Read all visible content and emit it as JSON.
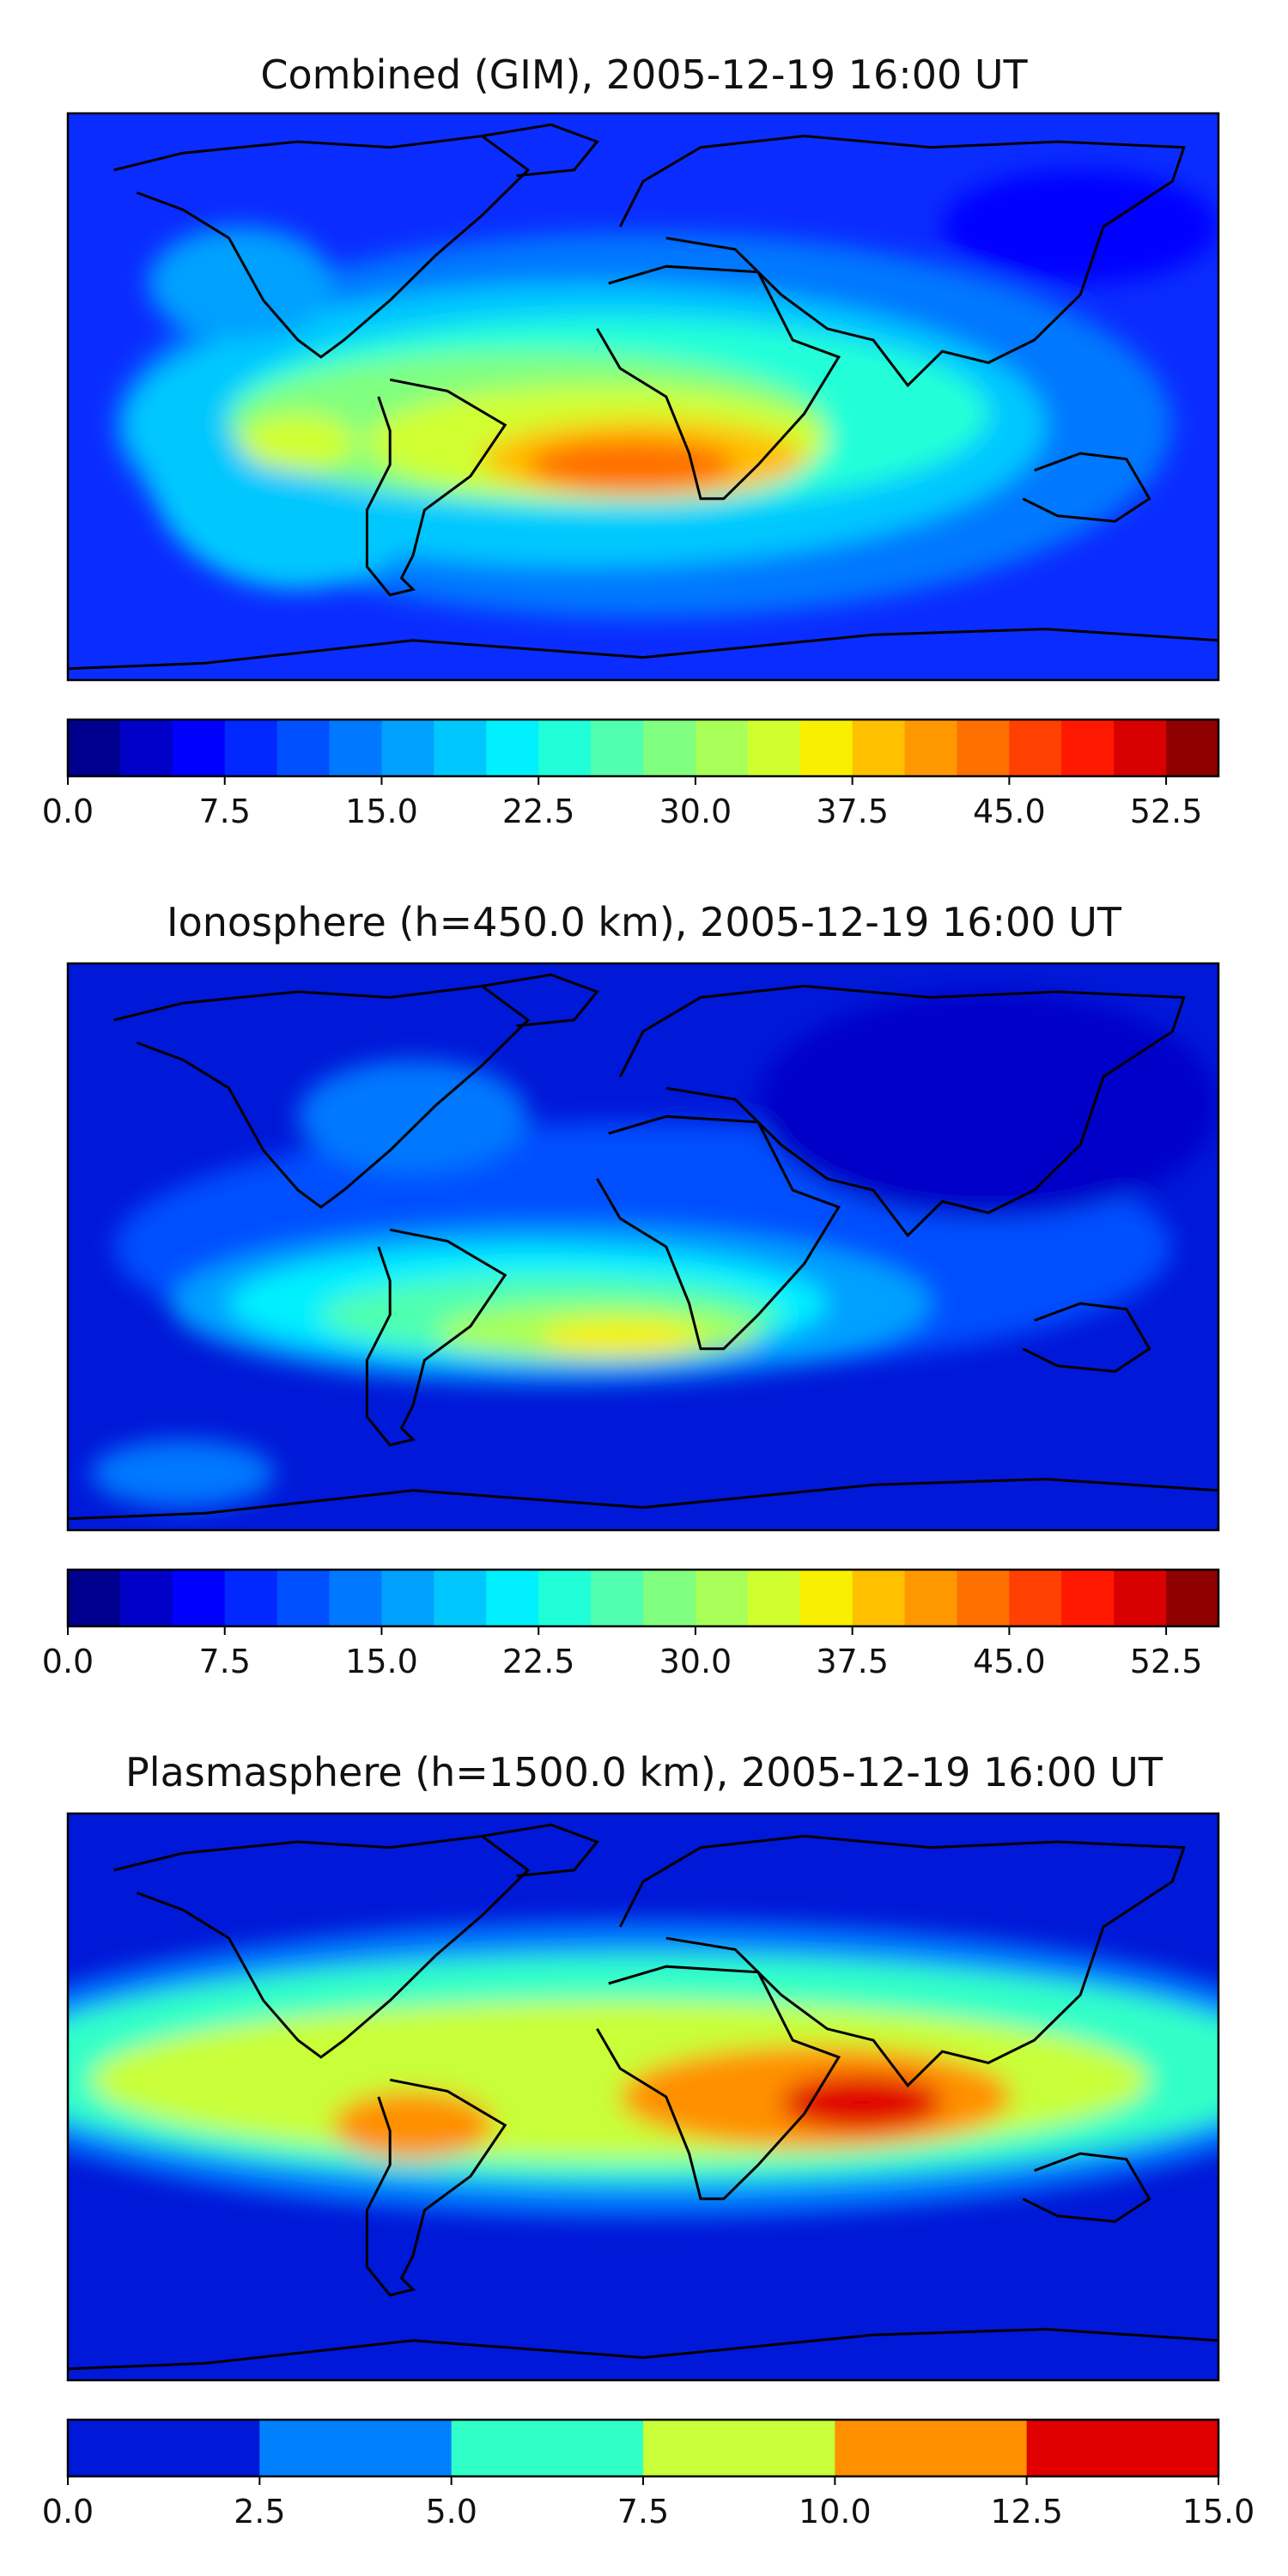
{
  "figure": {
    "panels": [
      {
        "title": "Combined (GIM), 2005-12-19 16:00 UT"
      },
      {
        "title": "Ionosphere  (h=450.0 km), 2005-12-19 16:00 UT"
      },
      {
        "title": "Plasmasphere (h=1500.0 km), 2005-12-19 16:00 UT"
      }
    ]
  },
  "chart_data": [
    {
      "type": "heatmap",
      "title": "Combined (GIM), 2005-12-19 16:00 UT",
      "colorbar": {
        "range": [
          0.0,
          55.0
        ],
        "levels": [
          0.0,
          2.5,
          5.0,
          7.5,
          10.0,
          12.5,
          15.0,
          17.5,
          20.0,
          22.5,
          25.0,
          27.5,
          30.0,
          32.5,
          35.0,
          37.5,
          40.0,
          42.5,
          45.0,
          47.5,
          50.0,
          52.5,
          55.0
        ],
        "tick_labels": [
          "0.0",
          "7.5",
          "15.0",
          "22.5",
          "30.0",
          "37.5",
          "45.0",
          "52.5"
        ],
        "tick_values": [
          0.0,
          7.5,
          15.0,
          22.5,
          30.0,
          37.5,
          45.0,
          52.5
        ],
        "colors": [
          "#00008f",
          "#0000c8",
          "#0000ff",
          "#0028ff",
          "#0050ff",
          "#0078ff",
          "#00a0ff",
          "#00c8ff",
          "#00f0ff",
          "#20ffd8",
          "#50ffb0",
          "#80ff80",
          "#a8ff58",
          "#d0ff30",
          "#f8f000",
          "#ffc000",
          "#ff9800",
          "#ff7000",
          "#ff4000",
          "#ff1800",
          "#d80000",
          "#8f0000"
        ]
      },
      "map": {
        "background": "#0a2cff",
        "max_region_value": 45.0
      }
    },
    {
      "type": "heatmap",
      "title": "Ionosphere  (h=450.0 km), 2005-12-19 16:00 UT",
      "colorbar": {
        "range": [
          0.0,
          55.0
        ],
        "levels": [
          0.0,
          2.5,
          5.0,
          7.5,
          10.0,
          12.5,
          15.0,
          17.5,
          20.0,
          22.5,
          25.0,
          27.5,
          30.0,
          32.5,
          35.0,
          37.5,
          40.0,
          42.5,
          45.0,
          47.5,
          50.0,
          52.5,
          55.0
        ],
        "tick_labels": [
          "0.0",
          "7.5",
          "15.0",
          "22.5",
          "30.0",
          "37.5",
          "45.0",
          "52.5"
        ],
        "tick_values": [
          0.0,
          7.5,
          15.0,
          22.5,
          30.0,
          37.5,
          45.0,
          52.5
        ],
        "colors": [
          "#00008f",
          "#0000c8",
          "#0000ff",
          "#0028ff",
          "#0050ff",
          "#0078ff",
          "#00a0ff",
          "#00c8ff",
          "#00f0ff",
          "#20ffd8",
          "#50ffb0",
          "#80ff80",
          "#a8ff58",
          "#d0ff30",
          "#f8f000",
          "#ffc000",
          "#ff9800",
          "#ff7000",
          "#ff4000",
          "#ff1800",
          "#d80000",
          "#8f0000"
        ]
      },
      "map": {
        "background": "#0018d8",
        "max_region_value": 37.5
      }
    },
    {
      "type": "heatmap",
      "title": "Plasmasphere (h=1500.0 km), 2005-12-19 16:00 UT",
      "colorbar": {
        "range": [
          0.0,
          15.0
        ],
        "levels": [
          0.0,
          2.5,
          5.0,
          7.5,
          10.0,
          12.5,
          15.0
        ],
        "tick_labels": [
          "0.0",
          "2.5",
          "5.0",
          "7.5",
          "10.0",
          "12.5",
          "15.0"
        ],
        "tick_values": [
          0.0,
          2.5,
          5.0,
          7.5,
          10.0,
          12.5,
          15.0
        ],
        "colors": [
          "#0018d8",
          "#0080ff",
          "#30ffc8",
          "#c8ff38",
          "#ff9000",
          "#e00000"
        ]
      },
      "map": {
        "background": "#0018d8",
        "max_region_value": 15.0
      }
    }
  ]
}
